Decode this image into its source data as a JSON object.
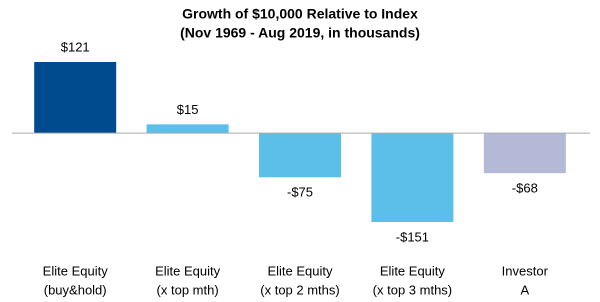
{
  "chart_data": {
    "type": "bar",
    "title": [
      "Growth of $10,000 Relative to Index",
      "(Nov 1969 - Aug 2019, in thousands)"
    ],
    "categories": [
      [
        "Elite Equity",
        "(buy&hold)"
      ],
      [
        "Elite Equity",
        "(x top mth)"
      ],
      [
        "Elite Equity",
        "(x top 2 mths)"
      ],
      [
        "Elite Equity",
        "(x top 3 mths)"
      ],
      [
        "Investor",
        "A"
      ]
    ],
    "values": [
      121,
      15,
      -75,
      -151,
      -68
    ],
    "value_labels": [
      "$121",
      "$15",
      "-$75",
      "-$151",
      "-$68"
    ],
    "colors": [
      "#004b8d",
      "#5bbfea",
      "#5bbfea",
      "#5bbfea",
      "#b3b9d6"
    ]
  }
}
